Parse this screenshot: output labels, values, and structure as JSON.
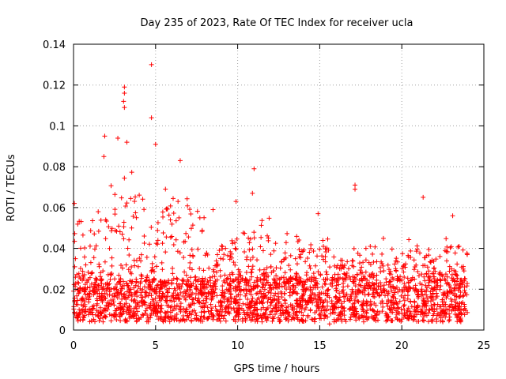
{
  "chart_data": {
    "type": "scatter",
    "title": "Day 235 of 2023, Rate Of TEC Index for receiver ucla",
    "xlabel": "GPS time / hours",
    "ylabel": "ROTI / TECUs",
    "xlim": [
      0,
      25
    ],
    "ylim": [
      0,
      0.14
    ],
    "xticks": [
      "0",
      "5",
      "10",
      "15",
      "20",
      "25"
    ],
    "yticks": [
      "0",
      "0.02",
      "0.04",
      "0.06",
      "0.08",
      "0.1",
      "0.12",
      "0.14"
    ],
    "grid": true,
    "marker": "+",
    "color": "#ff0000",
    "notable_points": [
      {
        "x": 4.75,
        "y": 0.13
      },
      {
        "x": 3.1,
        "y": 0.119
      },
      {
        "x": 3.1,
        "y": 0.116
      },
      {
        "x": 3.05,
        "y": 0.112
      },
      {
        "x": 3.1,
        "y": 0.109
      },
      {
        "x": 4.75,
        "y": 0.104
      },
      {
        "x": 1.9,
        "y": 0.095
      },
      {
        "x": 2.7,
        "y": 0.094
      },
      {
        "x": 3.25,
        "y": 0.092
      },
      {
        "x": 5.0,
        "y": 0.091
      },
      {
        "x": 1.85,
        "y": 0.085
      },
      {
        "x": 6.5,
        "y": 0.083
      },
      {
        "x": 11.0,
        "y": 0.079
      },
      {
        "x": 17.15,
        "y": 0.071
      },
      {
        "x": 17.15,
        "y": 0.069
      },
      {
        "x": 21.3,
        "y": 0.065
      },
      {
        "x": 10.9,
        "y": 0.067
      },
      {
        "x": 0.05,
        "y": 0.062
      },
      {
        "x": 9.9,
        "y": 0.063
      },
      {
        "x": 14.9,
        "y": 0.057
      },
      {
        "x": 8.5,
        "y": 0.059
      },
      {
        "x": 23.1,
        "y": 0.056
      },
      {
        "x": 15.6,
        "y": 0.003
      },
      {
        "x": 1.8,
        "y": 0.004
      }
    ],
    "density_profile": {
      "x_range": [
        0,
        24
      ],
      "hour_envelope_upper": [
        0.055,
        0.058,
        0.075,
        0.08,
        0.07,
        0.075,
        0.065,
        0.06,
        0.04,
        0.045,
        0.05,
        0.055,
        0.045,
        0.05,
        0.042,
        0.045,
        0.035,
        0.04,
        0.045,
        0.04,
        0.045,
        0.04,
        0.045,
        0.042
      ],
      "baseline_range": [
        0.004,
        0.025
      ]
    }
  }
}
